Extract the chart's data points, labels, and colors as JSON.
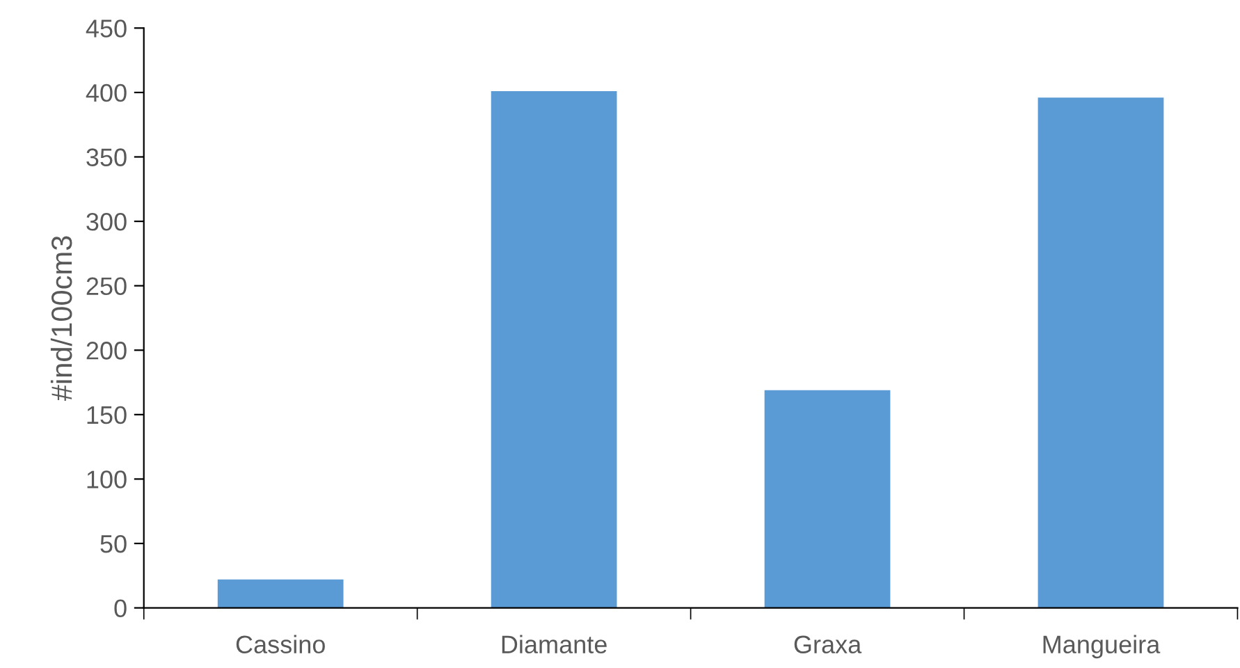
{
  "chart_data": {
    "type": "bar",
    "ylabel": "#ind/100cm3",
    "categories": [
      "Cassino",
      "Diamante",
      "Graxa",
      "Mangueira"
    ],
    "values": [
      22,
      401,
      169,
      396
    ],
    "color": "#5b9bd5",
    "ylim": [
      0,
      450
    ],
    "yticks": [
      0,
      50,
      100,
      150,
      200,
      250,
      300,
      350,
      400,
      450
    ],
    "grid": false
  }
}
